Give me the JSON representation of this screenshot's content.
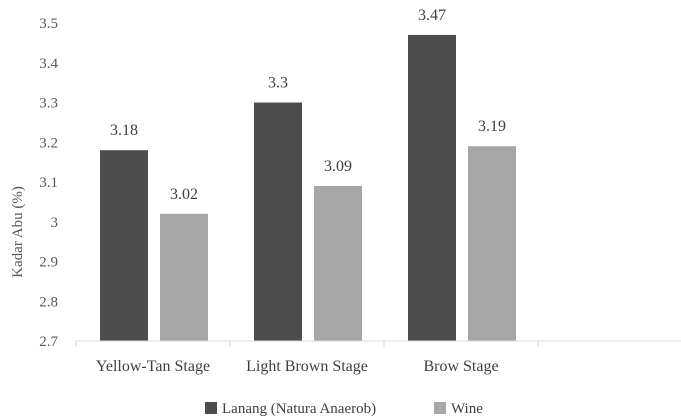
{
  "chart_data": {
    "type": "bar",
    "title": "",
    "xlabel": "",
    "ylabel": "Kadar Abu (%)",
    "categories": [
      "Yellow-Tan Stage",
      "Light Brown Stage",
      "Brow Stage"
    ],
    "series": [
      {
        "name": "Lanang (Natura Anaerob)",
        "values": [
          3.18,
          3.3,
          3.47
        ],
        "labels": [
          "3.18",
          "3.3",
          "3.47"
        ],
        "color": "#4d4d4d"
      },
      {
        "name": "Wine",
        "values": [
          3.02,
          3.09,
          3.19
        ],
        "labels": [
          "3.02",
          "3.09",
          "3.19"
        ],
        "color": "#a6a6a6"
      }
    ],
    "ylim": [
      2.7,
      3.5
    ],
    "yticks": [
      "2.7",
      "2.8",
      "2.9",
      "3",
      "3.1",
      "3.2",
      "3.3",
      "3.4",
      "3.5"
    ],
    "grid": false,
    "legend_position": "bottom"
  }
}
